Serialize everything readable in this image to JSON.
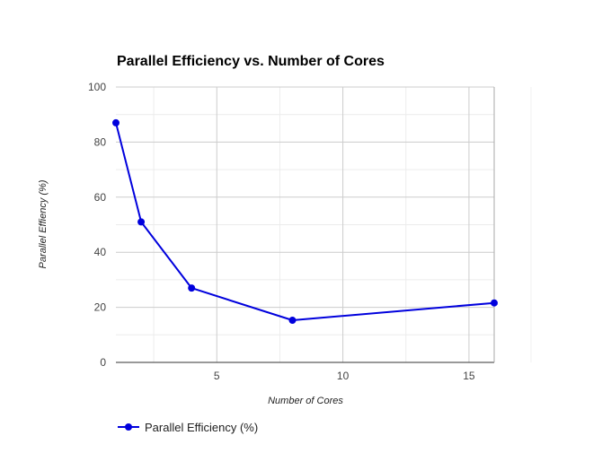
{
  "chart_data": {
    "type": "line",
    "title": "Parallel Efficiency vs. Number of Cores",
    "xlabel": "Number of Cores",
    "ylabel": "Parallel Effiency (%)",
    "xlim": [
      1,
      16
    ],
    "ylim": [
      0,
      100
    ],
    "x_ticks": [
      5,
      10,
      15
    ],
    "y_ticks": [
      0,
      20,
      40,
      60,
      80,
      100
    ],
    "grid": true,
    "legend_position": "bottom-left",
    "series": [
      {
        "name": "Parallel Efficiency (%)",
        "color": "#0000dd",
        "x": [
          1,
          2,
          4,
          8,
          16
        ],
        "y": [
          87,
          51,
          27,
          15.3,
          21.6
        ]
      }
    ]
  }
}
